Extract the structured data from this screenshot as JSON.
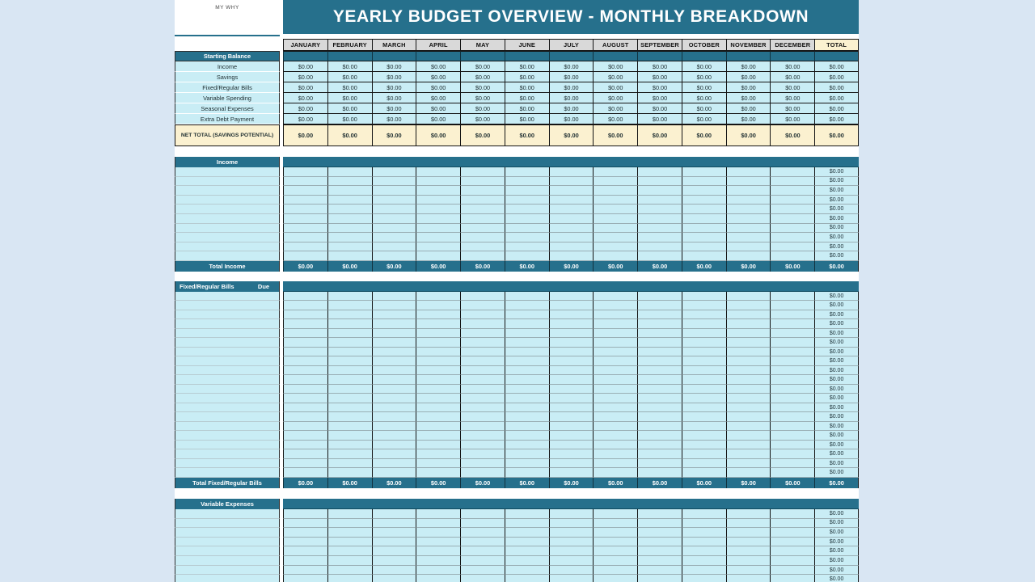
{
  "colors": {
    "page_background": "#D9E6F3",
    "teal": "#26708C",
    "cyan_cell": "#C9EDF5",
    "month_header_gray": "#D9D9D9",
    "cream": "#FBF1D0",
    "border_dark": "#141414"
  },
  "header": {
    "my_why_label": "MY WHY",
    "title": "YEARLY BUDGET OVERVIEW - MONTHLY BREAKDOWN"
  },
  "months": [
    "JANUARY",
    "FEBRUARY",
    "MARCH",
    "APRIL",
    "MAY",
    "JUNE",
    "JULY",
    "AUGUST",
    "SEPTEMBER",
    "OCTOBER",
    "NOVEMBER",
    "DECEMBER"
  ],
  "total_column_label": "TOTAL",
  "zero_value": "$0.00",
  "starting_balance": {
    "header": "Starting Balance",
    "rows": [
      {
        "label": "Income",
        "values": [
          "$0.00",
          "$0.00",
          "$0.00",
          "$0.00",
          "$0.00",
          "$0.00",
          "$0.00",
          "$0.00",
          "$0.00",
          "$0.00",
          "$0.00",
          "$0.00",
          "$0.00"
        ]
      },
      {
        "label": "Savings",
        "values": [
          "$0.00",
          "$0.00",
          "$0.00",
          "$0.00",
          "$0.00",
          "$0.00",
          "$0.00",
          "$0.00",
          "$0.00",
          "$0.00",
          "$0.00",
          "$0.00",
          "$0.00"
        ]
      },
      {
        "label": "Fixed/Regular Bills",
        "values": [
          "$0.00",
          "$0.00",
          "$0.00",
          "$0.00",
          "$0.00",
          "$0.00",
          "$0.00",
          "$0.00",
          "$0.00",
          "$0.00",
          "$0.00",
          "$0.00",
          "$0.00"
        ]
      },
      {
        "label": "Variable Spending",
        "values": [
          "$0.00",
          "$0.00",
          "$0.00",
          "$0.00",
          "$0.00",
          "$0.00",
          "$0.00",
          "$0.00",
          "$0.00",
          "$0.00",
          "$0.00",
          "$0.00",
          "$0.00"
        ]
      },
      {
        "label": "Seasonal Expenses",
        "values": [
          "$0.00",
          "$0.00",
          "$0.00",
          "$0.00",
          "$0.00",
          "$0.00",
          "$0.00",
          "$0.00",
          "$0.00",
          "$0.00",
          "$0.00",
          "$0.00",
          "$0.00"
        ]
      },
      {
        "label": "Extra Debt Payment",
        "values": [
          "$0.00",
          "$0.00",
          "$0.00",
          "$0.00",
          "$0.00",
          "$0.00",
          "$0.00",
          "$0.00",
          "$0.00",
          "$0.00",
          "$0.00",
          "$0.00",
          "$0.00"
        ]
      }
    ],
    "net_total": {
      "label": "NET TOTAL (SAVINGS POTENTIAL)",
      "values": [
        "$0.00",
        "$0.00",
        "$0.00",
        "$0.00",
        "$0.00",
        "$0.00",
        "$0.00",
        "$0.00",
        "$0.00",
        "$0.00",
        "$0.00",
        "$0.00",
        "$0.00"
      ]
    }
  },
  "income_section": {
    "header": "Income",
    "entry_row_count": 10,
    "entry_row_total": "$0.00",
    "total_row": {
      "label": "Total Income",
      "values": [
        "$0.00",
        "$0.00",
        "$0.00",
        "$0.00",
        "$0.00",
        "$0.00",
        "$0.00",
        "$0.00",
        "$0.00",
        "$0.00",
        "$0.00",
        "$0.00",
        "$0.00"
      ]
    }
  },
  "fixed_bills_section": {
    "header": "Fixed/Regular Bills",
    "due_header": "Due",
    "entry_row_count": 20,
    "entry_row_total": "$0.00",
    "total_row": {
      "label": "Total Fixed/Regular Bills",
      "values": [
        "$0.00",
        "$0.00",
        "$0.00",
        "$0.00",
        "$0.00",
        "$0.00",
        "$0.00",
        "$0.00",
        "$0.00",
        "$0.00",
        "$0.00",
        "$0.00",
        "$0.00"
      ]
    }
  },
  "variable_expenses_section": {
    "header": "Variable Expenses",
    "entry_row_count": 8,
    "entry_row_total": "$0.00"
  }
}
